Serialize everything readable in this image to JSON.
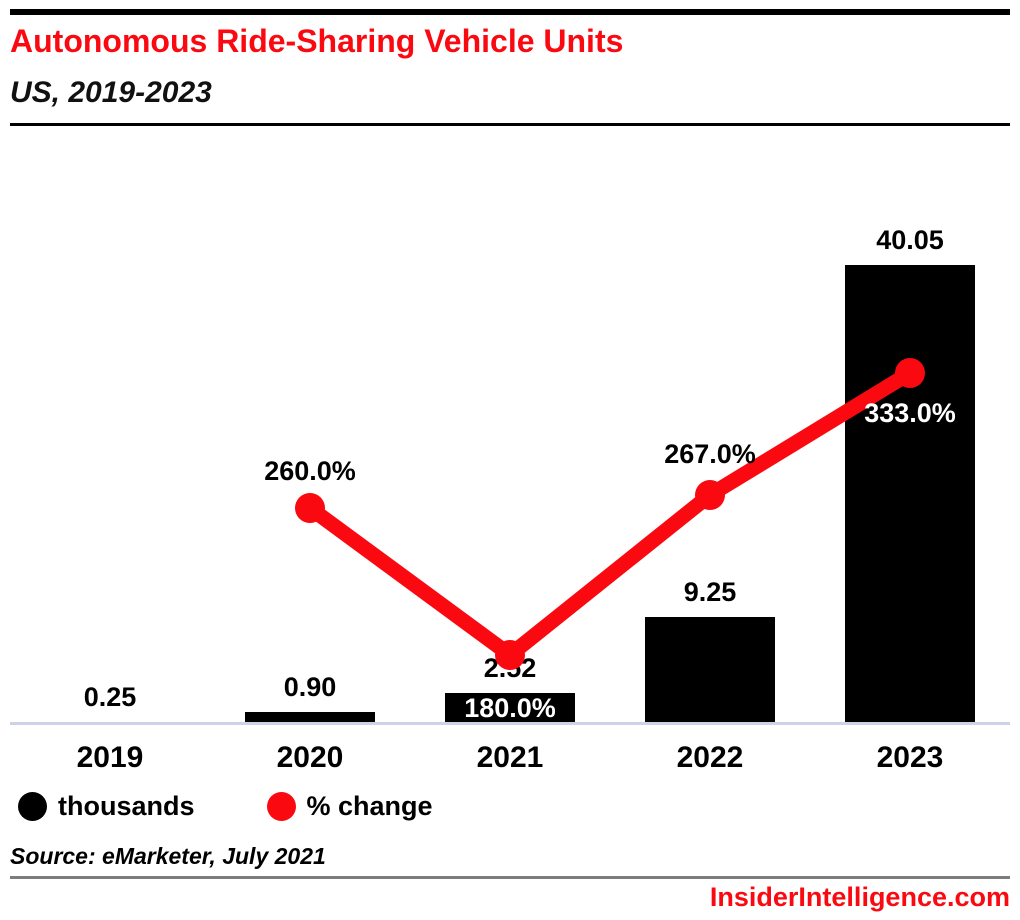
{
  "header": {
    "title": "Autonomous Ride-Sharing Vehicle Units",
    "subtitle": "US, 2019-2023"
  },
  "chart_data": {
    "type": "bar+line",
    "categories": [
      "2019",
      "2020",
      "2021",
      "2022",
      "2023"
    ],
    "series": [
      {
        "name": "thousands",
        "type": "bar",
        "values": [
          0.25,
          0.9,
          2.52,
          9.25,
          40.05
        ],
        "labels": [
          "0.25",
          "0.90",
          "2.52",
          "9.25",
          "40.05"
        ]
      },
      {
        "name": "% change",
        "type": "line",
        "values": [
          null,
          260.0,
          180.0,
          267.0,
          333.0
        ],
        "labels": [
          null,
          "260.0%",
          "180.0%",
          "267.0%",
          "333.0%"
        ]
      }
    ],
    "ylabel": "",
    "xlabel": "",
    "grid": false,
    "legend_position": "bottom-left",
    "value_axis_hidden": true
  },
  "legend": [
    {
      "label": "thousands",
      "color": "#000000"
    },
    {
      "label": "% change",
      "color": "#fa0a10"
    }
  ],
  "source": "Source: eMarketer, July 2021",
  "footer": {
    "site": "InsiderIntelligence.com"
  },
  "colors": {
    "accent_red": "#fa0a10",
    "bar_black": "#000000",
    "baseline": "#ccd3e8",
    "divider_gray": "#7d7d7d",
    "label_on_bar": "#ffffff"
  }
}
